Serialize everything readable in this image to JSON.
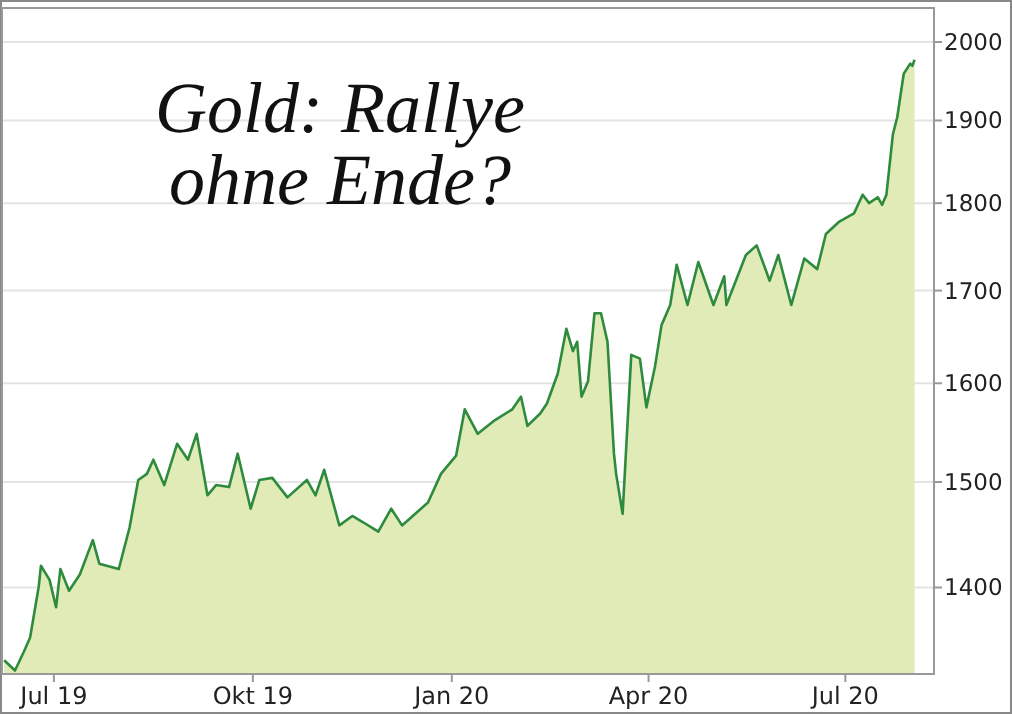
{
  "chart_data": {
    "type": "area",
    "title": "Gold: Rallye\nohne Ende?",
    "x": [
      "2019-06-08",
      "2019-06-13",
      "2019-06-17",
      "2019-06-20",
      "2019-06-24",
      "2019-06-25",
      "2019-06-29",
      "2019-07-02",
      "2019-07-04",
      "2019-07-08",
      "2019-07-13",
      "2019-07-19",
      "2019-07-22",
      "2019-07-31",
      "2019-08-05",
      "2019-08-09",
      "2019-08-13",
      "2019-08-16",
      "2019-08-21",
      "2019-08-27",
      "2019-09-01",
      "2019-09-05",
      "2019-09-10",
      "2019-09-14",
      "2019-09-20",
      "2019-09-24",
      "2019-09-30",
      "2019-10-04",
      "2019-10-10",
      "2019-10-17",
      "2019-10-26",
      "2019-10-30",
      "2019-11-03",
      "2019-11-10",
      "2019-11-16",
      "2019-11-21",
      "2019-11-28",
      "2019-12-04",
      "2019-12-09",
      "2019-12-21",
      "2019-12-27",
      "2020-01-03",
      "2020-01-07",
      "2020-01-13",
      "2020-01-21",
      "2020-01-29",
      "2020-02-02",
      "2020-02-05",
      "2020-02-11",
      "2020-02-14",
      "2020-02-19",
      "2020-02-23",
      "2020-02-26",
      "2020-02-28",
      "2020-03-01",
      "2020-03-04",
      "2020-03-07",
      "2020-03-10",
      "2020-03-13",
      "2020-03-16",
      "2020-03-17",
      "2020-03-20",
      "2020-03-24",
      "2020-03-28",
      "2020-03-31",
      "2020-04-04",
      "2020-04-07",
      "2020-04-11",
      "2020-04-14",
      "2020-04-19",
      "2020-04-24",
      "2020-05-01",
      "2020-05-06",
      "2020-05-07",
      "2020-05-16",
      "2020-05-21",
      "2020-05-27",
      "2020-05-31",
      "2020-06-06",
      "2020-06-12",
      "2020-06-18",
      "2020-06-22",
      "2020-06-28",
      "2020-07-05",
      "2020-07-09",
      "2020-07-12",
      "2020-07-16",
      "2020-07-18",
      "2020-07-20",
      "2020-07-23",
      "2020-07-25",
      "2020-07-28",
      "2020-07-31",
      "2020-08-01",
      "2020-08-02"
    ],
    "series": [
      {
        "color": "#2e8b3e",
        "values": [
          1335,
          1326,
          1342,
          1355,
          1401,
          1420,
          1407,
          1382,
          1417,
          1397,
          1412,
          1444,
          1422,
          1417,
          1456,
          1502,
          1508,
          1522,
          1497,
          1538,
          1522,
          1548,
          1487,
          1497,
          1495,
          1528,
          1474,
          1502,
          1504,
          1485,
          1502,
          1487,
          1512,
          1458,
          1467,
          1461,
          1452,
          1474,
          1458,
          1480,
          1508,
          1526,
          1573,
          1548,
          1562,
          1573,
          1586,
          1556,
          1569,
          1579,
          1610,
          1658,
          1634,
          1644,
          1586,
          1602,
          1675,
          1675,
          1644,
          1528,
          1508,
          1469,
          1630,
          1626,
          1575,
          1618,
          1662,
          1684,
          1729,
          1684,
          1732,
          1684,
          1716,
          1684,
          1740,
          1751,
          1711,
          1740,
          1684,
          1736,
          1724,
          1764,
          1778,
          1788,
          1810,
          1800,
          1807,
          1798,
          1810,
          1883,
          1904,
          1959,
          1972,
          1969,
          1977
        ]
      }
    ],
    "xlim": [
      "2019-06-07",
      "2020-08-11"
    ],
    "xticks": [
      {
        "value": "2019-07-01",
        "label": "Jul 19"
      },
      {
        "value": "2019-10-01",
        "label": "Okt 19"
      },
      {
        "value": "2020-01-01",
        "label": "Jan 20"
      },
      {
        "value": "2020-04-01",
        "label": "Apr 20"
      },
      {
        "value": "2020-07-01",
        "label": "Jul 20"
      }
    ],
    "ylim": [
      1323,
      2045
    ],
    "yticks": [
      1400,
      1500,
      1600,
      1700,
      1800,
      1900,
      2000
    ],
    "log": true,
    "grid": "y"
  }
}
